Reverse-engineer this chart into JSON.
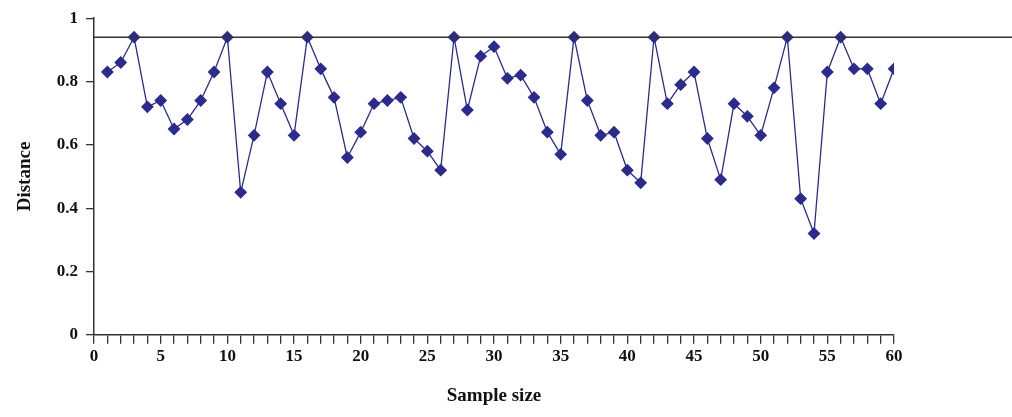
{
  "chart_data": {
    "type": "line",
    "xlabel": "Sample size",
    "ylabel": "Distance",
    "x": [
      1,
      2,
      3,
      4,
      5,
      6,
      7,
      8,
      9,
      10,
      11,
      12,
      13,
      14,
      15,
      16,
      17,
      18,
      19,
      20,
      21,
      22,
      23,
      24,
      25,
      26,
      27,
      28,
      29,
      30,
      31,
      32,
      33,
      34,
      35,
      36,
      37,
      38,
      39,
      40,
      41,
      42,
      43,
      44,
      45,
      46,
      47,
      48,
      49,
      50,
      51,
      52,
      53,
      54,
      55,
      56,
      57,
      58,
      59,
      60
    ],
    "series": [
      {
        "color": "#2b2b8f",
        "values": [
          0.83,
          0.86,
          0.94,
          0.72,
          0.74,
          0.65,
          0.68,
          0.74,
          0.83,
          0.94,
          0.45,
          0.63,
          0.83,
          0.73,
          0.63,
          0.94,
          0.84,
          0.75,
          0.56,
          0.64,
          0.73,
          0.74,
          0.75,
          0.62,
          0.58,
          0.52,
          0.94,
          0.71,
          0.88,
          0.91,
          0.81,
          0.82,
          0.75,
          0.64,
          0.57,
          0.94,
          0.74,
          0.63,
          0.64,
          0.52,
          0.48,
          0.94,
          0.73,
          0.79,
          0.83,
          0.62,
          0.49,
          0.73,
          0.69,
          0.63,
          0.78,
          0.94,
          0.43,
          0.32,
          0.83,
          0.94,
          0.84,
          0.84,
          0.73,
          0.84
        ]
      }
    ],
    "xlim": [
      0,
      60
    ],
    "xticks": [
      0,
      {
        "value": 1,
        "label": null
      },
      {
        "value": 2,
        "label": null
      },
      {
        "value": 3,
        "label": null
      },
      {
        "value": 4,
        "label": null
      },
      5,
      {
        "value": 6,
        "label": null
      },
      {
        "value": 7,
        "label": null
      },
      {
        "value": 8,
        "label": null
      },
      {
        "value": 9,
        "label": null
      },
      10,
      {
        "value": 11,
        "label": null
      },
      {
        "value": 12,
        "label": null
      },
      {
        "value": 13,
        "label": null
      },
      {
        "value": 14,
        "label": null
      },
      15,
      {
        "value": 16,
        "label": null
      },
      {
        "value": 17,
        "label": null
      },
      {
        "value": 18,
        "label": null
      },
      {
        "value": 19,
        "label": null
      },
      20,
      {
        "value": 21,
        "label": null
      },
      {
        "value": 22,
        "label": null
      },
      {
        "value": 23,
        "label": null
      },
      {
        "value": 24,
        "label": null
      },
      25,
      {
        "value": 26,
        "label": null
      },
      {
        "value": 27,
        "label": null
      },
      {
        "value": 28,
        "label": null
      },
      {
        "value": 29,
        "label": null
      },
      30,
      {
        "value": 31,
        "label": null
      },
      {
        "value": 32,
        "label": null
      },
      {
        "value": 33,
        "label": null
      },
      {
        "value": 34,
        "label": null
      },
      35,
      {
        "value": 36,
        "label": null
      },
      {
        "value": 37,
        "label": null
      },
      {
        "value": 38,
        "label": null
      },
      {
        "value": 39,
        "label": null
      },
      40,
      {
        "value": 41,
        "label": null
      },
      {
        "value": 42,
        "label": null
      },
      {
        "value": 43,
        "label": null
      },
      {
        "value": 44,
        "label": null
      },
      45,
      {
        "value": 46,
        "label": null
      },
      {
        "value": 47,
        "label": null
      },
      {
        "value": 48,
        "label": null
      },
      {
        "value": 49,
        "label": null
      },
      50,
      {
        "value": 51,
        "label": null
      },
      {
        "value": 52,
        "label": null
      },
      {
        "value": 53,
        "label": null
      },
      {
        "value": 54,
        "label": null
      },
      55,
      {
        "value": 56,
        "label": null
      },
      {
        "value": 57,
        "label": null
      },
      {
        "value": 58,
        "label": null
      },
      {
        "value": 59,
        "label": null
      },
      60
    ],
    "ylim": [
      0,
      1
    ],
    "yticks": [
      0,
      0.2,
      0.4,
      0.6,
      0.8,
      1
    ],
    "ref_lines": [
      {
        "axis": "y",
        "value": 0.94,
        "color": "#333333"
      }
    ],
    "grid": false,
    "legend": false,
    "marker": "diamond",
    "line_style": "solid"
  }
}
